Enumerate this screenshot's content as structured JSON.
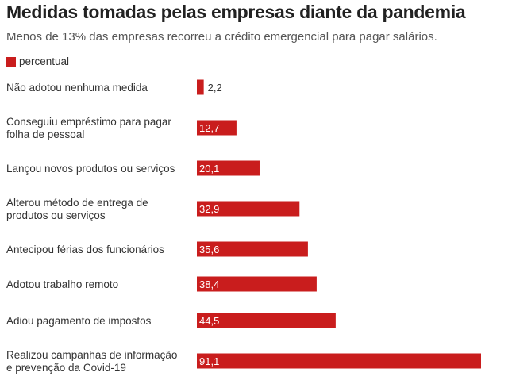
{
  "header": {
    "title": "Medidas tomadas pelas empresas diante da pandemia",
    "subtitle": "Menos de 13% das empresas recorreu a crédito emergencial para pagar salários."
  },
  "chart_data": {
    "type": "bar",
    "orientation": "horizontal",
    "title": "Medidas tomadas pelas empresas diante da pandemia",
    "subtitle": "Menos de 13% das empresas recorreu a crédito emergencial para pagar salários.",
    "categories": [
      [
        "Não adotou nenhuma medida"
      ],
      [
        "Conseguiu empréstimo para pagar",
        "folha de pessoal"
      ],
      [
        "Lançou novos produtos ou serviços"
      ],
      [
        "Alterou método de entrega de",
        "produtos ou serviços"
      ],
      [
        "Antecipou férias dos funcionários"
      ],
      [
        "Adotou trabalho remoto"
      ],
      [
        "Adiou pagamento de impostos"
      ],
      [
        "Realizou campanhas de informação",
        "e prevenção da Covid-19"
      ]
    ],
    "series": [
      {
        "name": "percentual",
        "values": [
          2.2,
          12.7,
          20.1,
          32.9,
          35.6,
          38.4,
          44.5,
          91.1
        ],
        "labels": [
          "2,2",
          "12,7",
          "20,1",
          "32,9",
          "35,6",
          "38,4",
          "44,5",
          "91,1"
        ]
      }
    ],
    "xlim": [
      0,
      91.1
    ],
    "grid": false,
    "legend": "top-left",
    "colors": {
      "bar": "#c91d1d",
      "label_inside": "#ffffff",
      "label_outside": "#333333"
    }
  }
}
